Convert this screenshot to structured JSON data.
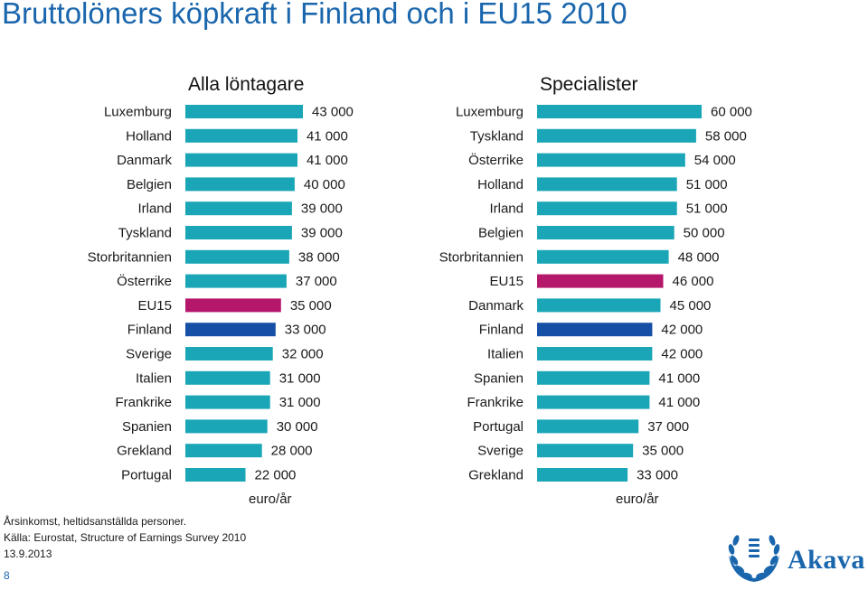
{
  "title": "Bruttolöners köpkraft i Finland och i EU15 2010",
  "colors": {
    "bar": "#1aa6b7",
    "eu15": "#b5176b",
    "finland": "#1550a6",
    "title": "#1a66ad"
  },
  "chart_data": [
    {
      "type": "bar",
      "orientation": "horizontal",
      "title": "Alla löntagare",
      "xlabel": "euro/år",
      "categories": [
        "Luxemburg",
        "Holland",
        "Danmark",
        "Belgien",
        "Irland",
        "Tyskland",
        "Storbritannien",
        "Österrike",
        "EU15",
        "Finland",
        "Sverige",
        "Italien",
        "Frankrike",
        "Spanien",
        "Grekland",
        "Portugal"
      ],
      "values": [
        43000,
        41000,
        41000,
        40000,
        39000,
        39000,
        38000,
        37000,
        35000,
        33000,
        32000,
        31000,
        31000,
        30000,
        28000,
        22000
      ],
      "value_labels": [
        "43 000",
        "41 000",
        "41 000",
        "40 000",
        "39 000",
        "39 000",
        "38 000",
        "37 000",
        "35 000",
        "33 000",
        "32 000",
        "31 000",
        "31 000",
        "30 000",
        "28 000",
        "22 000"
      ],
      "highlight": {
        "EU15": "eu15",
        "Finland": "finland"
      }
    },
    {
      "type": "bar",
      "orientation": "horizontal",
      "title": "Specialister",
      "xlabel": "euro/år",
      "categories": [
        "Luxemburg",
        "Tyskland",
        "Österrike",
        "Holland",
        "Irland",
        "Belgien",
        "Storbritannien",
        "EU15",
        "Danmark",
        "Finland",
        "Italien",
        "Spanien",
        "Frankrike",
        "Portugal",
        "Sverige",
        "Grekland"
      ],
      "values": [
        60000,
        58000,
        54000,
        51000,
        51000,
        50000,
        48000,
        46000,
        45000,
        42000,
        42000,
        41000,
        41000,
        37000,
        35000,
        33000
      ],
      "value_labels": [
        "60 000",
        "58 000",
        "54 000",
        "51 000",
        "51 000",
        "50 000",
        "48 000",
        "46 000",
        "45 000",
        "42 000",
        "42 000",
        "41 000",
        "41 000",
        "37 000",
        "35 000",
        "33 000"
      ],
      "highlight": {
        "EU15": "eu15",
        "Finland": "finland"
      }
    }
  ],
  "footnotes": {
    "line1": "Årsinkomst, heltidsanställda personer.",
    "line2": "Källa: Eurostat, Structure of Earnings Survey 2010",
    "date": "13.9.2013"
  },
  "page_number": "8",
  "logo": {
    "text": "Akava",
    "icon": "akava-laurel-logo-icon"
  }
}
